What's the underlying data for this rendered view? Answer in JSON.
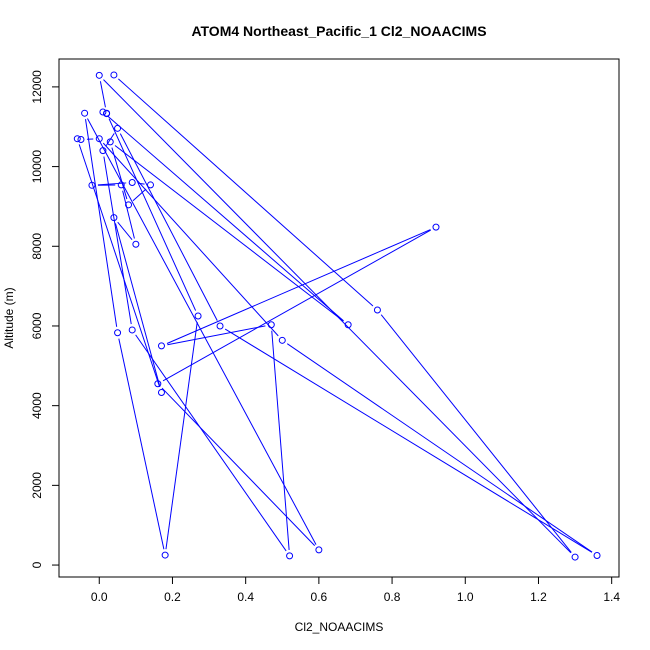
{
  "chart_data": {
    "type": "line",
    "title": "ATOM4 Northeast_Pacific_1 Cl2_NOAACIMS",
    "xlabel": "Cl2_NOAACIMS",
    "ylabel": "Altitude (m)",
    "xlim": [
      -0.11,
      1.42
    ],
    "ylim": [
      -300,
      12700
    ],
    "xticks": [
      0.0,
      0.2,
      0.4,
      0.6,
      0.8,
      1.0,
      1.2,
      1.4
    ],
    "xtick_labels": [
      "0.0",
      "0.2",
      "0.4",
      "0.6",
      "0.8",
      "1.0",
      "1.2",
      "1.4"
    ],
    "yticks": [
      0,
      2000,
      4000,
      6000,
      8000,
      10000,
      12000
    ],
    "ytick_labels": [
      "0",
      "2000",
      "4000",
      "6000",
      "8000",
      "10000",
      "12000"
    ],
    "grid": false,
    "series_color": "#0000ff",
    "series": [
      {
        "points": [
          [
            0.04,
            12300
          ],
          [
            0.76,
            6400
          ],
          [
            1.3,
            200
          ],
          [
            0.0,
            12290
          ],
          [
            0.02,
            11340
          ],
          [
            0.27,
            6250
          ],
          [
            0.18,
            250
          ],
          [
            0.05,
            5830
          ],
          [
            -0.04,
            11340
          ],
          [
            0.6,
            380
          ],
          [
            0.16,
            4550
          ],
          [
            0.92,
            8480
          ],
          [
            0.17,
            5500
          ],
          [
            0.47,
            6030
          ],
          [
            0.52,
            230
          ],
          [
            0.09,
            5900
          ],
          [
            0.01,
            10400
          ],
          [
            0.05,
            10960
          ],
          [
            0.33,
            6000
          ],
          [
            1.36,
            240
          ],
          [
            0.5,
            5640
          ],
          [
            0.0,
            10700
          ],
          [
            -0.05,
            10680
          ],
          [
            -0.06,
            10700
          ],
          [
            0.17,
            4330
          ],
          [
            0.04,
            8720
          ],
          [
            0.1,
            8050
          ],
          [
            0.06,
            9540
          ],
          [
            -0.02,
            9530
          ],
          [
            0.09,
            9600
          ],
          [
            0.14,
            9540
          ],
          [
            0.08,
            9040
          ],
          [
            0.03,
            10620
          ],
          [
            0.68,
            6030
          ],
          [
            0.01,
            11370
          ],
          [
            0.02,
            11330
          ]
        ]
      }
    ]
  }
}
